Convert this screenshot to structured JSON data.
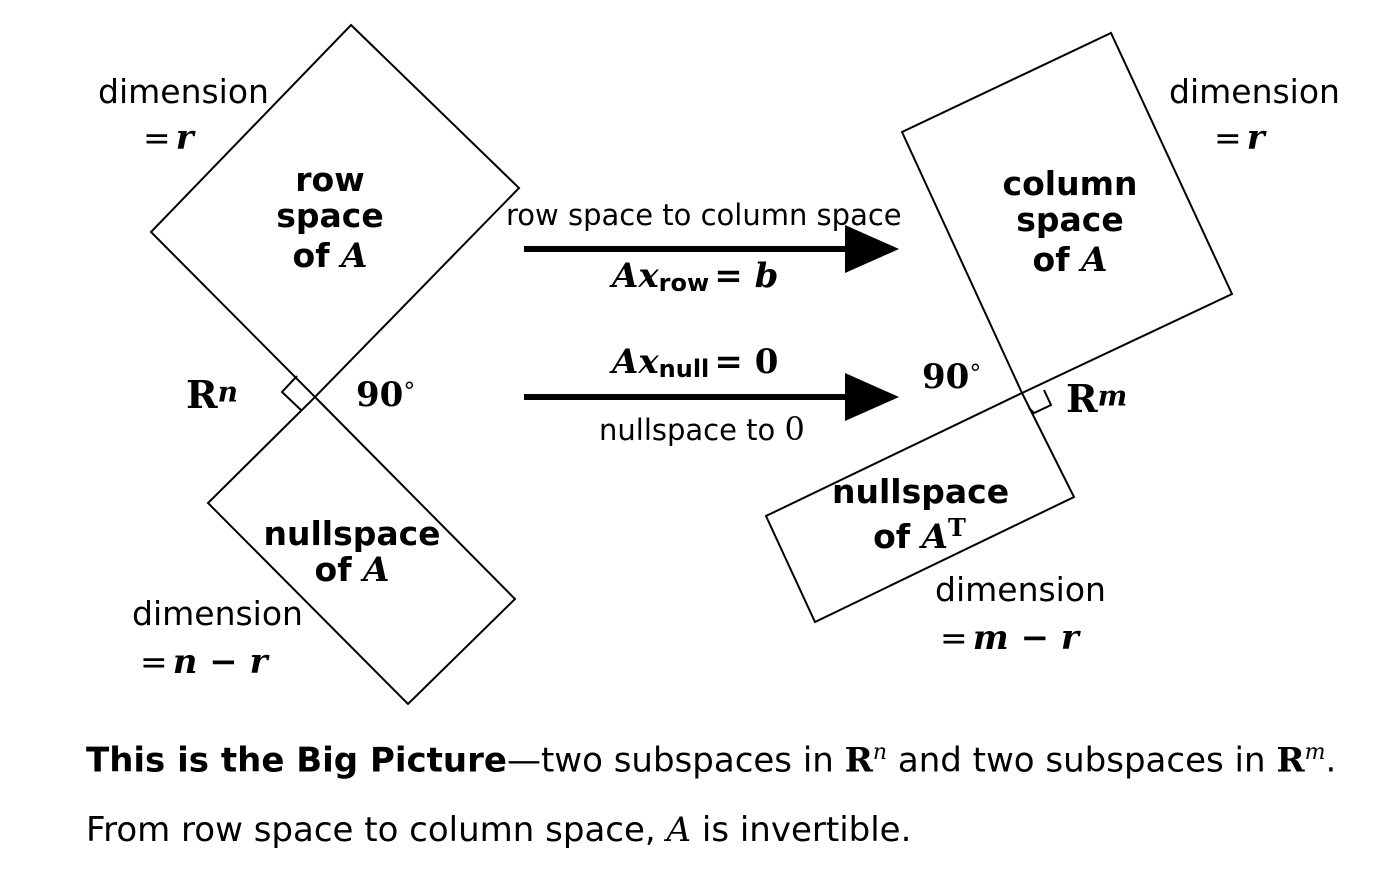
{
  "left": {
    "row_space": {
      "line1": "row",
      "line2": "space",
      "line3_prefix": "of",
      "line3_var": "A"
    },
    "null_space": {
      "line1": "nullspace",
      "line2_prefix": "of",
      "line2_var": "A"
    },
    "dim_top": {
      "word": "dimension",
      "eq": "=",
      "var": "r"
    },
    "dim_bottom": {
      "word": "dimension",
      "eq": "=",
      "expr": "n − r"
    },
    "space_label": {
      "base": "R",
      "sup": "n"
    },
    "angle": {
      "value": "90",
      "degree": "°"
    }
  },
  "right": {
    "column_space": {
      "line1": "column",
      "line2": "space",
      "line3_prefix": "of",
      "line3_var": "A"
    },
    "left_null": {
      "line1": "nullspace",
      "line2_prefix": "of",
      "line2_var": "A",
      "sup": "T"
    },
    "dim_top": {
      "word": "dimension",
      "eq": "=",
      "var": "r"
    },
    "dim_bottom": {
      "word": "dimension",
      "eq": "=",
      "expr": "m − r"
    },
    "space_label": {
      "base": "R",
      "sup": "m"
    },
    "angle": {
      "value": "90",
      "degree": "°"
    }
  },
  "arrows": {
    "top": {
      "text": "row space to column space",
      "eq_lhs": "Ax",
      "eq_sub": "row",
      "eq_rhs": "= b"
    },
    "bottom": {
      "eq_lhs": "Ax",
      "eq_sub": "null",
      "eq_rhs": "= 0",
      "text_prefix": "nullspace to",
      "text_target": "0"
    }
  },
  "caption": {
    "bold": "This is the Big Picture",
    "dash": "—",
    "part1": "two subspaces in ",
    "r1_base": "R",
    "r1_sup": "n",
    "part2": " and two subspaces in ",
    "r2_base": "R",
    "r2_sup": "m",
    "end": ".",
    "line2_a": "From row space to column space, ",
    "line2_var": "A",
    "line2_b": " is invertible."
  }
}
